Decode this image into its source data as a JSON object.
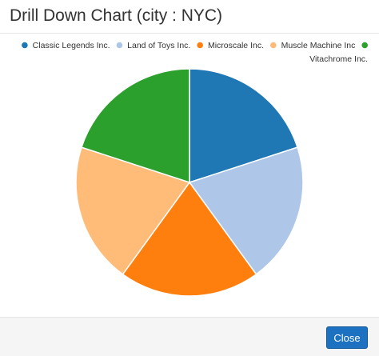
{
  "header": {
    "title": "Drill Down Chart (city : NYC)"
  },
  "footer": {
    "close_label": "Close"
  },
  "chart_data": {
    "type": "pie",
    "title": "",
    "legend_position": "top-right",
    "categories": [
      "Classic Legends Inc.",
      "Land of Toys Inc.",
      "Microscale Inc.",
      "Muscle Machine Inc",
      "Vitachrome Inc."
    ],
    "values": [
      20,
      20,
      20,
      20,
      20
    ],
    "colors": [
      "#1f77b4",
      "#aec7e8",
      "#ff7f0e",
      "#ffbb78",
      "#2ca02c"
    ]
  }
}
